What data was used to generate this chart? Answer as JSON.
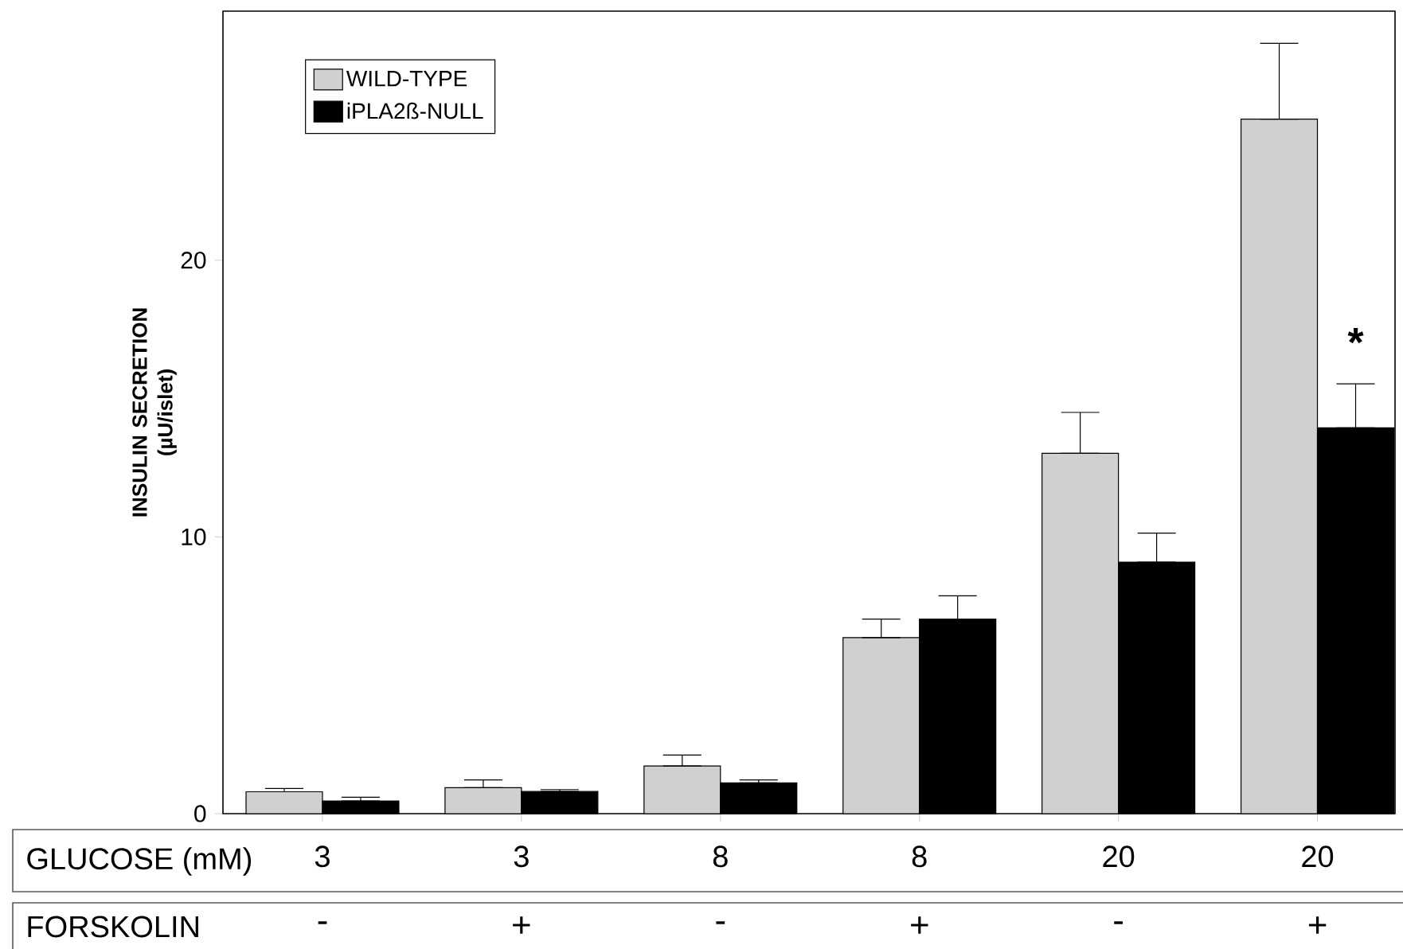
{
  "chart_data": {
    "type": "bar",
    "categories": [
      "3",
      "3",
      "8",
      "8",
      "20",
      "20"
    ],
    "xlabel": "GLUCOSE (mM)",
    "ylabel": "INSULIN SECRETION (µU/islet)",
    "series": [
      {
        "name": "WILD-TYPE",
        "color": "#d0d0d0",
        "values": [
          0.79,
          0.94,
          1.72,
          6.36,
          13.02,
          25.1
        ],
        "errors": [
          [
            0.79,
            0.91
          ],
          [
            0.94,
            1.22
          ],
          [
            1.72,
            2.12
          ],
          [
            6.36,
            7.03
          ],
          [
            13.02,
            14.5
          ],
          [
            25.1,
            27.84
          ]
        ]
      },
      {
        "name": "iPLA2ß-NULL",
        "color": "#000000",
        "values": [
          0.46,
          0.8,
          1.11,
          7.03,
          9.09,
          13.94
        ],
        "errors": [
          [
            0.46,
            0.59
          ],
          [
            0.8,
            0.87
          ],
          [
            1.11,
            1.22
          ],
          [
            7.03,
            7.87
          ],
          [
            9.09,
            10.14
          ],
          [
            13.94,
            15.53
          ]
        ]
      }
    ],
    "ylim": [
      0,
      29
    ],
    "yticks": [
      0,
      10,
      20
    ],
    "legend": "top left",
    "annotations": [
      "FORSKOLIN",
      "-",
      "+",
      "-",
      "+",
      "-",
      "+",
      "*"
    ]
  }
}
